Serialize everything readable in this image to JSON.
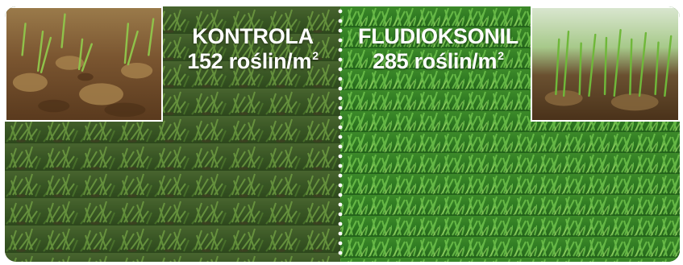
{
  "panels": {
    "left": {
      "title": "KONTROLA",
      "count": "152 roślin/m",
      "unit_superscript": "2"
    },
    "right": {
      "title": "FLUDIOKSONIL",
      "count": "285 roślin/m",
      "unit_superscript": "2"
    }
  },
  "colors": {
    "label_text": "#ffffff",
    "divider_dots": "#ffffff",
    "soil": "#6b4a2a",
    "foliage": "#3f8a2c"
  }
}
